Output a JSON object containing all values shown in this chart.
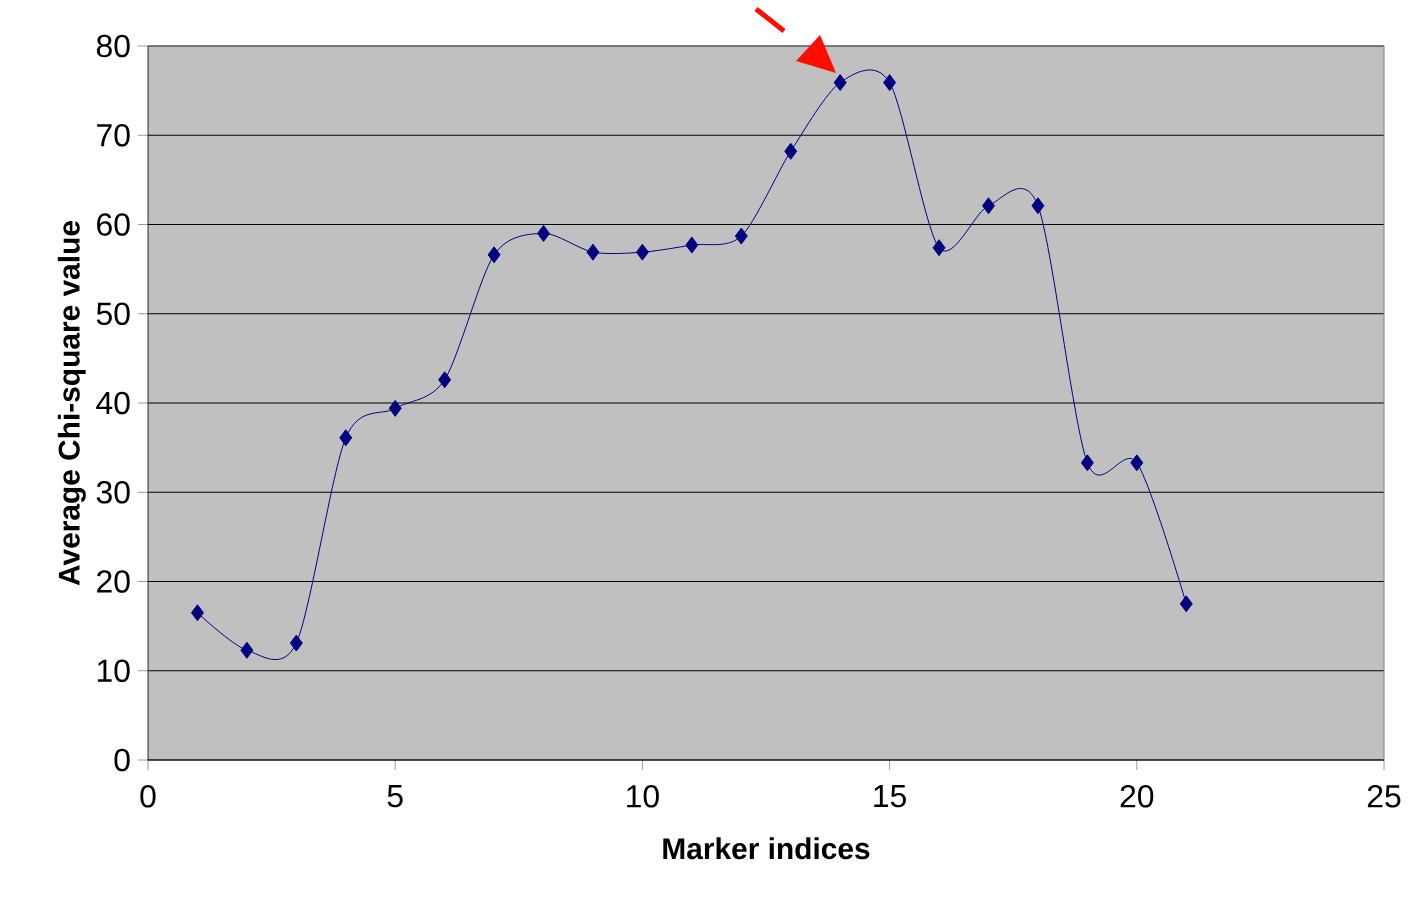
{
  "chart_data": {
    "type": "line",
    "xlabel": "Marker indices",
    "ylabel": "Average Chi-square value",
    "x": [
      1,
      2,
      3,
      4,
      5,
      6,
      7,
      8,
      9,
      10,
      11,
      12,
      13,
      14,
      15,
      16,
      17,
      18,
      19,
      20,
      21
    ],
    "series": [
      {
        "color": "#000080",
        "values": [
          16.5,
          12.3,
          13.1,
          36.1,
          39.4,
          42.6,
          56.6,
          59.0,
          56.9,
          56.9,
          57.7,
          58.7,
          68.2,
          75.9,
          75.9,
          57.4,
          62.1,
          62.1,
          33.3,
          33.3,
          17.5
        ]
      }
    ],
    "xlim": [
      0,
      25
    ],
    "xticks": [
      0,
      5,
      10,
      15,
      20,
      25
    ],
    "ylim": [
      0,
      80
    ],
    "yticks": [
      0,
      10,
      20,
      30,
      40,
      50,
      60,
      70,
      80
    ],
    "grid": "y",
    "marker": "diamond",
    "line_style": "solid"
  }
}
